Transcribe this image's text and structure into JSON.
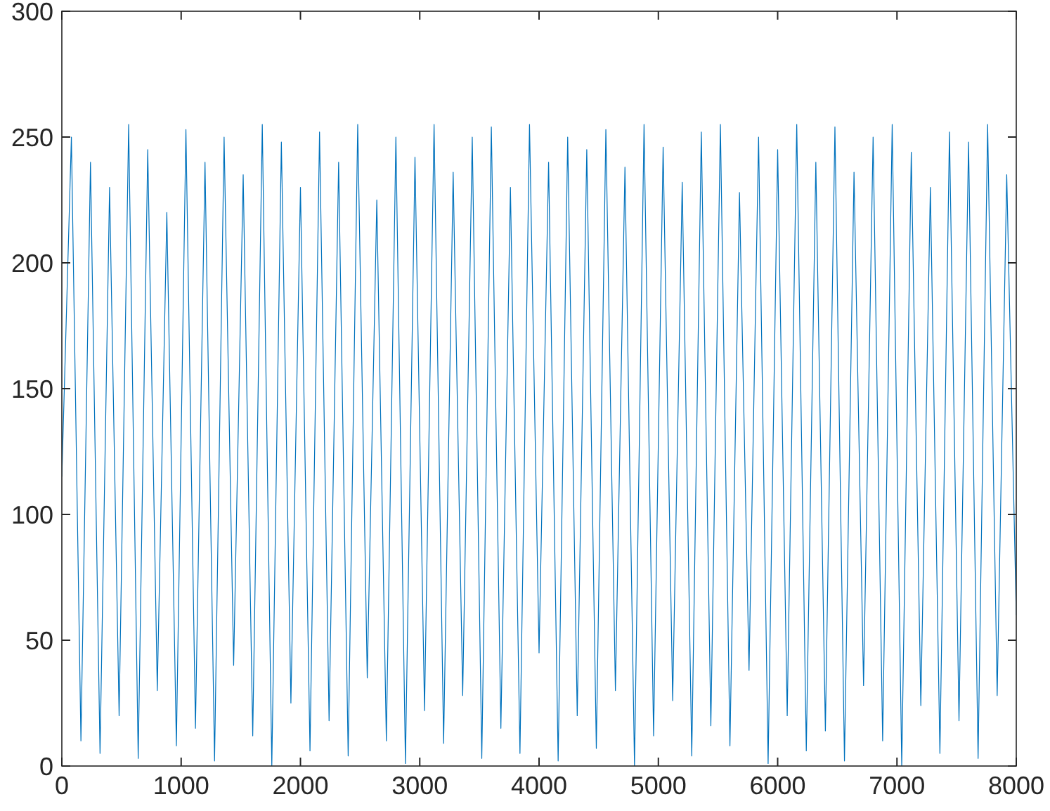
{
  "chart_data": {
    "type": "line",
    "x": [
      0,
      80,
      160,
      240,
      320,
      400,
      480,
      560,
      640,
      720,
      800,
      880,
      960,
      1040,
      1120,
      1200,
      1280,
      1360,
      1440,
      1520,
      1600,
      1680,
      1760,
      1840,
      1920,
      2000,
      2080,
      2160,
      2240,
      2320,
      2400,
      2480,
      2560,
      2640,
      2720,
      2800,
      2880,
      2960,
      3040,
      3120,
      3200,
      3280,
      3360,
      3440,
      3520,
      3600,
      3680,
      3760,
      3840,
      3920,
      4000,
      4080,
      4160,
      4240,
      4320,
      4400,
      4480,
      4560,
      4640,
      4720,
      4800,
      4880,
      4960,
      5040,
      5120,
      5200,
      5280,
      5360,
      5440,
      5520,
      5600,
      5680,
      5760,
      5840,
      5920,
      6000,
      6080,
      6160,
      6240,
      6320,
      6400,
      6480,
      6560,
      6640,
      6720,
      6800,
      6880,
      6960,
      7040,
      7120,
      7200,
      7280,
      7360,
      7440,
      7520,
      7600,
      7680,
      7760,
      7840,
      7920,
      8000
    ],
    "series": [
      {
        "color": "#0072bd",
        "values": [
          115,
          250,
          10,
          240,
          5,
          230,
          20,
          255,
          3,
          245,
          30,
          220,
          8,
          253,
          15,
          240,
          2,
          250,
          40,
          235,
          12,
          255,
          0,
          248,
          25,
          230,
          6,
          252,
          18,
          240,
          4,
          255,
          35,
          225,
          10,
          250,
          1,
          242,
          22,
          255,
          9,
          236,
          28,
          250,
          3,
          254,
          15,
          230,
          5,
          255,
          45,
          240,
          2,
          250,
          20,
          245,
          7,
          253,
          30,
          238,
          0,
          255,
          12,
          246,
          26,
          232,
          4,
          252,
          16,
          255,
          8,
          228,
          38,
          250,
          1,
          245,
          20,
          255,
          6,
          240,
          14,
          254,
          2,
          236,
          32,
          250,
          10,
          255,
          0,
          244,
          24,
          230,
          5,
          252,
          18,
          248,
          3,
          255,
          28,
          235,
          60
        ]
      }
    ],
    "xlim": [
      0,
      8000
    ],
    "xticks": [
      0,
      1000,
      2000,
      3000,
      4000,
      5000,
      6000,
      7000,
      8000
    ],
    "ylim": [
      0,
      300
    ],
    "yticks": [
      0,
      50,
      100,
      150,
      200,
      250,
      300
    ],
    "grid": false,
    "marker": "none",
    "line_style": "solid"
  }
}
